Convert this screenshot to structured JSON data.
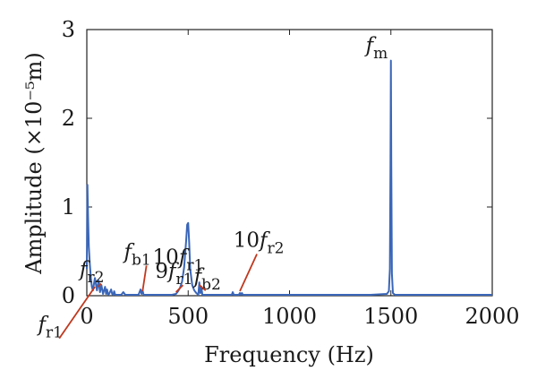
{
  "chart_data": {
    "type": "line",
    "xlabel": "Frequency (Hz)",
    "ylabel": "Amplitude (×10⁻⁵m)",
    "xlim": [
      0,
      2000
    ],
    "ylim": [
      0,
      3
    ],
    "xticks": [
      "0",
      "500",
      "1000",
      "1500",
      "2000"
    ],
    "yticks": [
      "0",
      "1",
      "2",
      "3"
    ],
    "grid": false,
    "line_color": "#3a66b8",
    "annotation_color": "#c0381e",
    "series": [
      {
        "x": [
          0,
          3,
          6,
          10,
          15,
          20,
          25,
          30,
          40,
          50,
          58,
          65,
          72,
          80,
          90,
          95,
          100,
          105,
          110,
          120,
          125,
          130,
          135,
          140,
          150,
          170,
          180,
          190,
          200,
          230,
          255,
          265,
          270,
          275,
          280,
          290,
          330,
          370,
          420,
          440,
          450,
          460,
          470,
          480,
          490,
          495,
          500,
          505,
          510,
          520,
          530,
          540,
          550,
          555,
          560,
          565,
          570,
          600,
          650,
          700,
          715,
          720,
          725,
          735,
          750,
          755,
          760,
          765,
          770,
          800,
          900,
          1000,
          1100,
          1200,
          1300,
          1400,
          1480,
          1490,
          1495,
          1498,
          1500,
          1502,
          1505,
          1510,
          1520,
          1600,
          1700,
          1800,
          1900,
          2000
        ],
        "y": [
          0.3,
          1.25,
          0.9,
          0.55,
          0.35,
          0.2,
          0.1,
          0.06,
          0.2,
          0.06,
          0.17,
          0.04,
          0.12,
          0.02,
          0.1,
          0.02,
          0.07,
          0.01,
          0.02,
          0.07,
          0.02,
          0.01,
          0.05,
          0.01,
          0.01,
          0.01,
          0.04,
          0.01,
          0.01,
          0.01,
          0.01,
          0.07,
          0.02,
          0.06,
          0.01,
          0.01,
          0.01,
          0.01,
          0.01,
          0.02,
          0.05,
          0.09,
          0.16,
          0.32,
          0.62,
          0.8,
          0.82,
          0.6,
          0.3,
          0.12,
          0.06,
          0.03,
          0.01,
          0.15,
          0.03,
          0.1,
          0.01,
          0.01,
          0.01,
          0.01,
          0.01,
          0.04,
          0.01,
          0.01,
          0.01,
          0.03,
          0.01,
          0.03,
          0.01,
          0.01,
          0.01,
          0.01,
          0.01,
          0.01,
          0.01,
          0.01,
          0.02,
          0.05,
          0.3,
          1.5,
          2.65,
          1.5,
          0.25,
          0.03,
          0.01,
          0.01,
          0.01,
          0.01,
          0.01,
          0.01
        ]
      }
    ],
    "annotations": [
      {
        "mult": "",
        "f": "f",
        "sub": "m",
        "point": [
          1500,
          2.65
        ],
        "anchor": [
          1430,
          2.75
        ],
        "leader": false
      },
      {
        "mult": "10",
        "f": "f",
        "sub": "r2",
        "point": [
          755,
          0.05
        ],
        "anchor": [
          848,
          0.55
        ],
        "leader": true
      },
      {
        "mult": "10",
        "f": "f",
        "sub": "r1",
        "point": [
          495,
          0.8
        ],
        "anchor": [
          450,
          0.36
        ],
        "leader": false
      },
      {
        "mult": "",
        "f": "f",
        "sub": "b1",
        "point": [
          275,
          0.05
        ],
        "anchor": [
          250,
          0.42
        ],
        "leader": true
      },
      {
        "mult": "9",
        "f": "f",
        "sub": "r1",
        "point": [
          440,
          0.04
        ],
        "anchor": [
          430,
          0.2
        ],
        "leader": true
      },
      {
        "mult": "",
        "f": "f",
        "sub": "b2",
        "point": [
          555,
          0.12
        ],
        "anchor": [
          595,
          0.14
        ],
        "leader": true
      },
      {
        "mult": "",
        "f": "f",
        "sub": "r2",
        "point": [
          58,
          0.1
        ],
        "anchor": [
          25,
          0.22
        ],
        "leader": true
      },
      {
        "mult": "",
        "f": "f",
        "sub": "r1",
        "point": [
          40,
          0.1
        ],
        "anchor": [
          -180,
          -0.4
        ],
        "leader": true
      }
    ]
  }
}
